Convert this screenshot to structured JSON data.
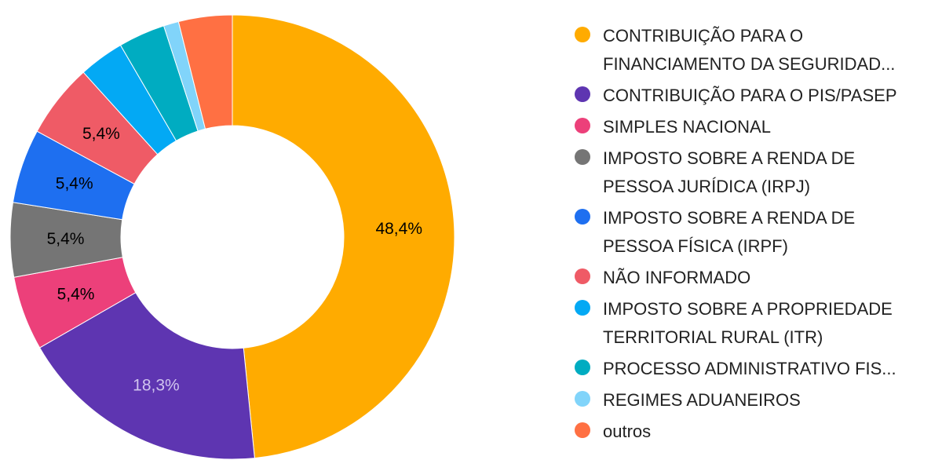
{
  "chart_data": {
    "type": "pie",
    "donut": true,
    "legend_position": "right",
    "slices": [
      {
        "label": "CONTRIBUIÇÃO PARA O\nFINANCIAMENTO DA SEGURIDAD...",
        "value": 48.4,
        "display": "48,4%",
        "color": "#FFAB00",
        "label_color": "#000000"
      },
      {
        "label": "CONTRIBUIÇÃO PARA O PIS/PASEP",
        "value": 18.3,
        "display": "18,3%",
        "color": "#5E35B1",
        "label_color": "#D0C4EE"
      },
      {
        "label": "SIMPLES NACIONAL",
        "value": 5.4,
        "display": "5,4%",
        "color": "#EC407A",
        "label_color": "#000000"
      },
      {
        "label": "IMPOSTO SOBRE A RENDA DE\nPESSOA JURÍDICA (IRPJ)",
        "value": 5.4,
        "display": "5,4%",
        "color": "#757575",
        "label_color": "#000000"
      },
      {
        "label": "IMPOSTO SOBRE A RENDA DE\nPESSOA FÍSICA (IRPF)",
        "value": 5.4,
        "display": "5,4%",
        "color": "#1E6FF0",
        "label_color": "#000000"
      },
      {
        "label": "NÃO INFORMADO",
        "value": 5.4,
        "display": "5,4%",
        "color": "#EF5B66",
        "label_color": "#000000"
      },
      {
        "label": "IMPOSTO SOBRE A PROPRIEDADE\nTERRITORIAL RURAL (ITR)",
        "value": 3.3,
        "display": "",
        "color": "#03A9F4",
        "label_color": "#000000"
      },
      {
        "label": "PROCESSO ADMINISTRATIVO FIS...",
        "value": 3.4,
        "display": "",
        "color": "#00ACC1",
        "label_color": "#000000"
      },
      {
        "label": "REGIMES ADUANEIROS",
        "value": 1.1,
        "display": "",
        "color": "#81D4FA",
        "label_color": "#000000"
      },
      {
        "label": "outros",
        "value": 3.9,
        "display": "",
        "color": "#FF7043",
        "label_color": "#000000"
      }
    ]
  }
}
